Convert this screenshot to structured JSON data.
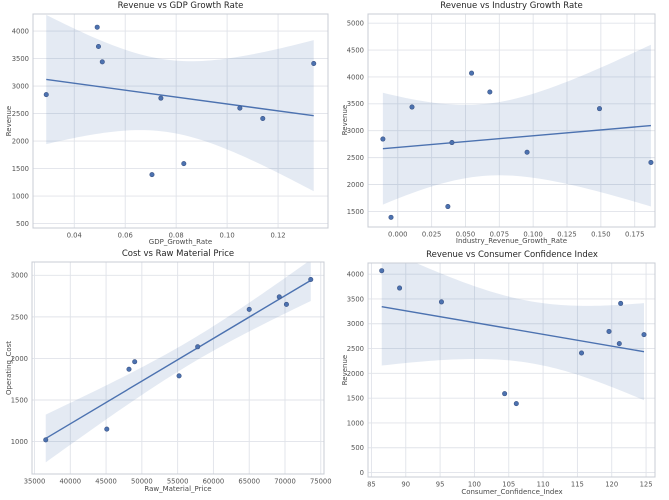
{
  "figure": {
    "colors": {
      "accent": "#4c72b0",
      "point_fill": "#4c72b0",
      "point_edge": "#3b5384",
      "band": "#4c72b0",
      "band_opacity": 0.15,
      "grid": "#e0e3e9",
      "spine": "#c8ccd4",
      "title_text": "#262626",
      "tick_text": "#555555",
      "background": "#ffffff"
    }
  },
  "chart_data": [
    {
      "type": "scatter",
      "trend": "linear-regression",
      "ci_percent": 95,
      "grid": true,
      "title": "Revenue vs GDP Growth Rate",
      "xlabel": "GDP_Growth_Rate",
      "ylabel": "Revenue",
      "x": [
        0.029,
        0.049,
        0.0495,
        0.051,
        0.0705,
        0.074,
        0.083,
        0.105,
        0.114,
        0.134
      ],
      "y": [
        2845,
        4070,
        3720,
        3440,
        1390,
        2780,
        1590,
        2600,
        2410,
        3410
      ],
      "xlim": [
        0.0238,
        0.1396
      ],
      "ylim": [
        420,
        4310
      ],
      "xtick_values": [
        0.04,
        0.06,
        0.08,
        0.1,
        0.12
      ],
      "xtick_labels": [
        "0.04",
        "0.06",
        "0.08",
        "0.10",
        "0.12"
      ],
      "ytick_values": [
        500,
        1000,
        1500,
        2000,
        2500,
        3000,
        3500,
        4000
      ],
      "ytick_labels": [
        "500",
        "1000",
        "1500",
        "2000",
        "2500",
        "3000",
        "3500",
        "4000"
      ]
    },
    {
      "type": "scatter",
      "trend": "linear-regression",
      "ci_percent": 95,
      "grid": true,
      "title": "Revenue vs Industry Growth Rate",
      "xlabel": "Industry_Revenue_Growth_Rate",
      "ylabel": "Revenue",
      "x": [
        -0.011,
        -0.005,
        0.0105,
        0.037,
        0.04,
        0.0545,
        0.068,
        0.0955,
        0.149,
        0.187
      ],
      "y": [
        2845,
        1390,
        3440,
        1590,
        2780,
        4070,
        3720,
        2600,
        3410,
        2410
      ],
      "xlim": [
        -0.022,
        0.19
      ],
      "ylim": [
        1210,
        5170
      ],
      "xtick_values": [
        0.0,
        0.025,
        0.05,
        0.075,
        0.1,
        0.125,
        0.15,
        0.175
      ],
      "xtick_labels": [
        "0.000",
        "0.025",
        "0.050",
        "0.075",
        "0.100",
        "0.125",
        "0.150",
        "0.175"
      ],
      "ytick_values": [
        1500,
        2000,
        2500,
        3000,
        3500,
        4000,
        4500,
        5000
      ],
      "ytick_labels": [
        "1500",
        "2000",
        "2500",
        "3000",
        "3500",
        "4000",
        "4500",
        "5000"
      ]
    },
    {
      "type": "scatter",
      "trend": "linear-regression",
      "ci_percent": 95,
      "grid": true,
      "title": "Cost vs Raw Material Price",
      "xlabel": "Raw_Material_Price",
      "ylabel": "Operating_Cost",
      "x": [
        36570,
        45100,
        48200,
        49000,
        55200,
        57800,
        65000,
        69200,
        70200,
        73600
      ],
      "y": [
        1020,
        1150,
        1870,
        1960,
        1790,
        2140,
        2590,
        2740,
        2650,
        2950
      ],
      "xlim": [
        34650,
        75450
      ],
      "ylim": [
        610,
        3160
      ],
      "xtick_values": [
        35000,
        40000,
        45000,
        50000,
        55000,
        60000,
        65000,
        70000,
        75000
      ],
      "xtick_labels": [
        "35000",
        "40000",
        "45000",
        "50000",
        "55000",
        "60000",
        "65000",
        "70000",
        "75000"
      ],
      "ytick_values": [
        1000,
        1500,
        2000,
        2500,
        3000
      ],
      "ytick_labels": [
        "1000",
        "1500",
        "2000",
        "2500",
        "3000"
      ]
    },
    {
      "type": "scatter",
      "trend": "linear-regression",
      "ci_percent": 95,
      "grid": true,
      "title": "Revenue vs Consumer Confidence Index",
      "xlabel": "Consumer_Confidence_Index",
      "ylabel": "Revenue",
      "x": [
        86.5,
        89.1,
        95.2,
        104.4,
        106.1,
        115.6,
        119.6,
        121.1,
        121.3,
        124.7
      ],
      "y": [
        4070,
        3720,
        3440,
        1590,
        1390,
        2410,
        2845,
        2600,
        3410,
        2780
      ],
      "xlim": [
        84.5,
        126.3
      ],
      "ylim": [
        -90,
        4225
      ],
      "xtick_values": [
        85,
        90,
        95,
        100,
        105,
        110,
        115,
        120,
        125
      ],
      "xtick_labels": [
        "85",
        "90",
        "95",
        "100",
        "105",
        "110",
        "115",
        "120",
        "125"
      ],
      "ytick_values": [
        0,
        500,
        1000,
        1500,
        2000,
        2500,
        3000,
        3500,
        4000
      ],
      "ytick_labels": [
        "0",
        "500",
        "1000",
        "1500",
        "2000",
        "2500",
        "3000",
        "3500",
        "4000"
      ]
    }
  ]
}
